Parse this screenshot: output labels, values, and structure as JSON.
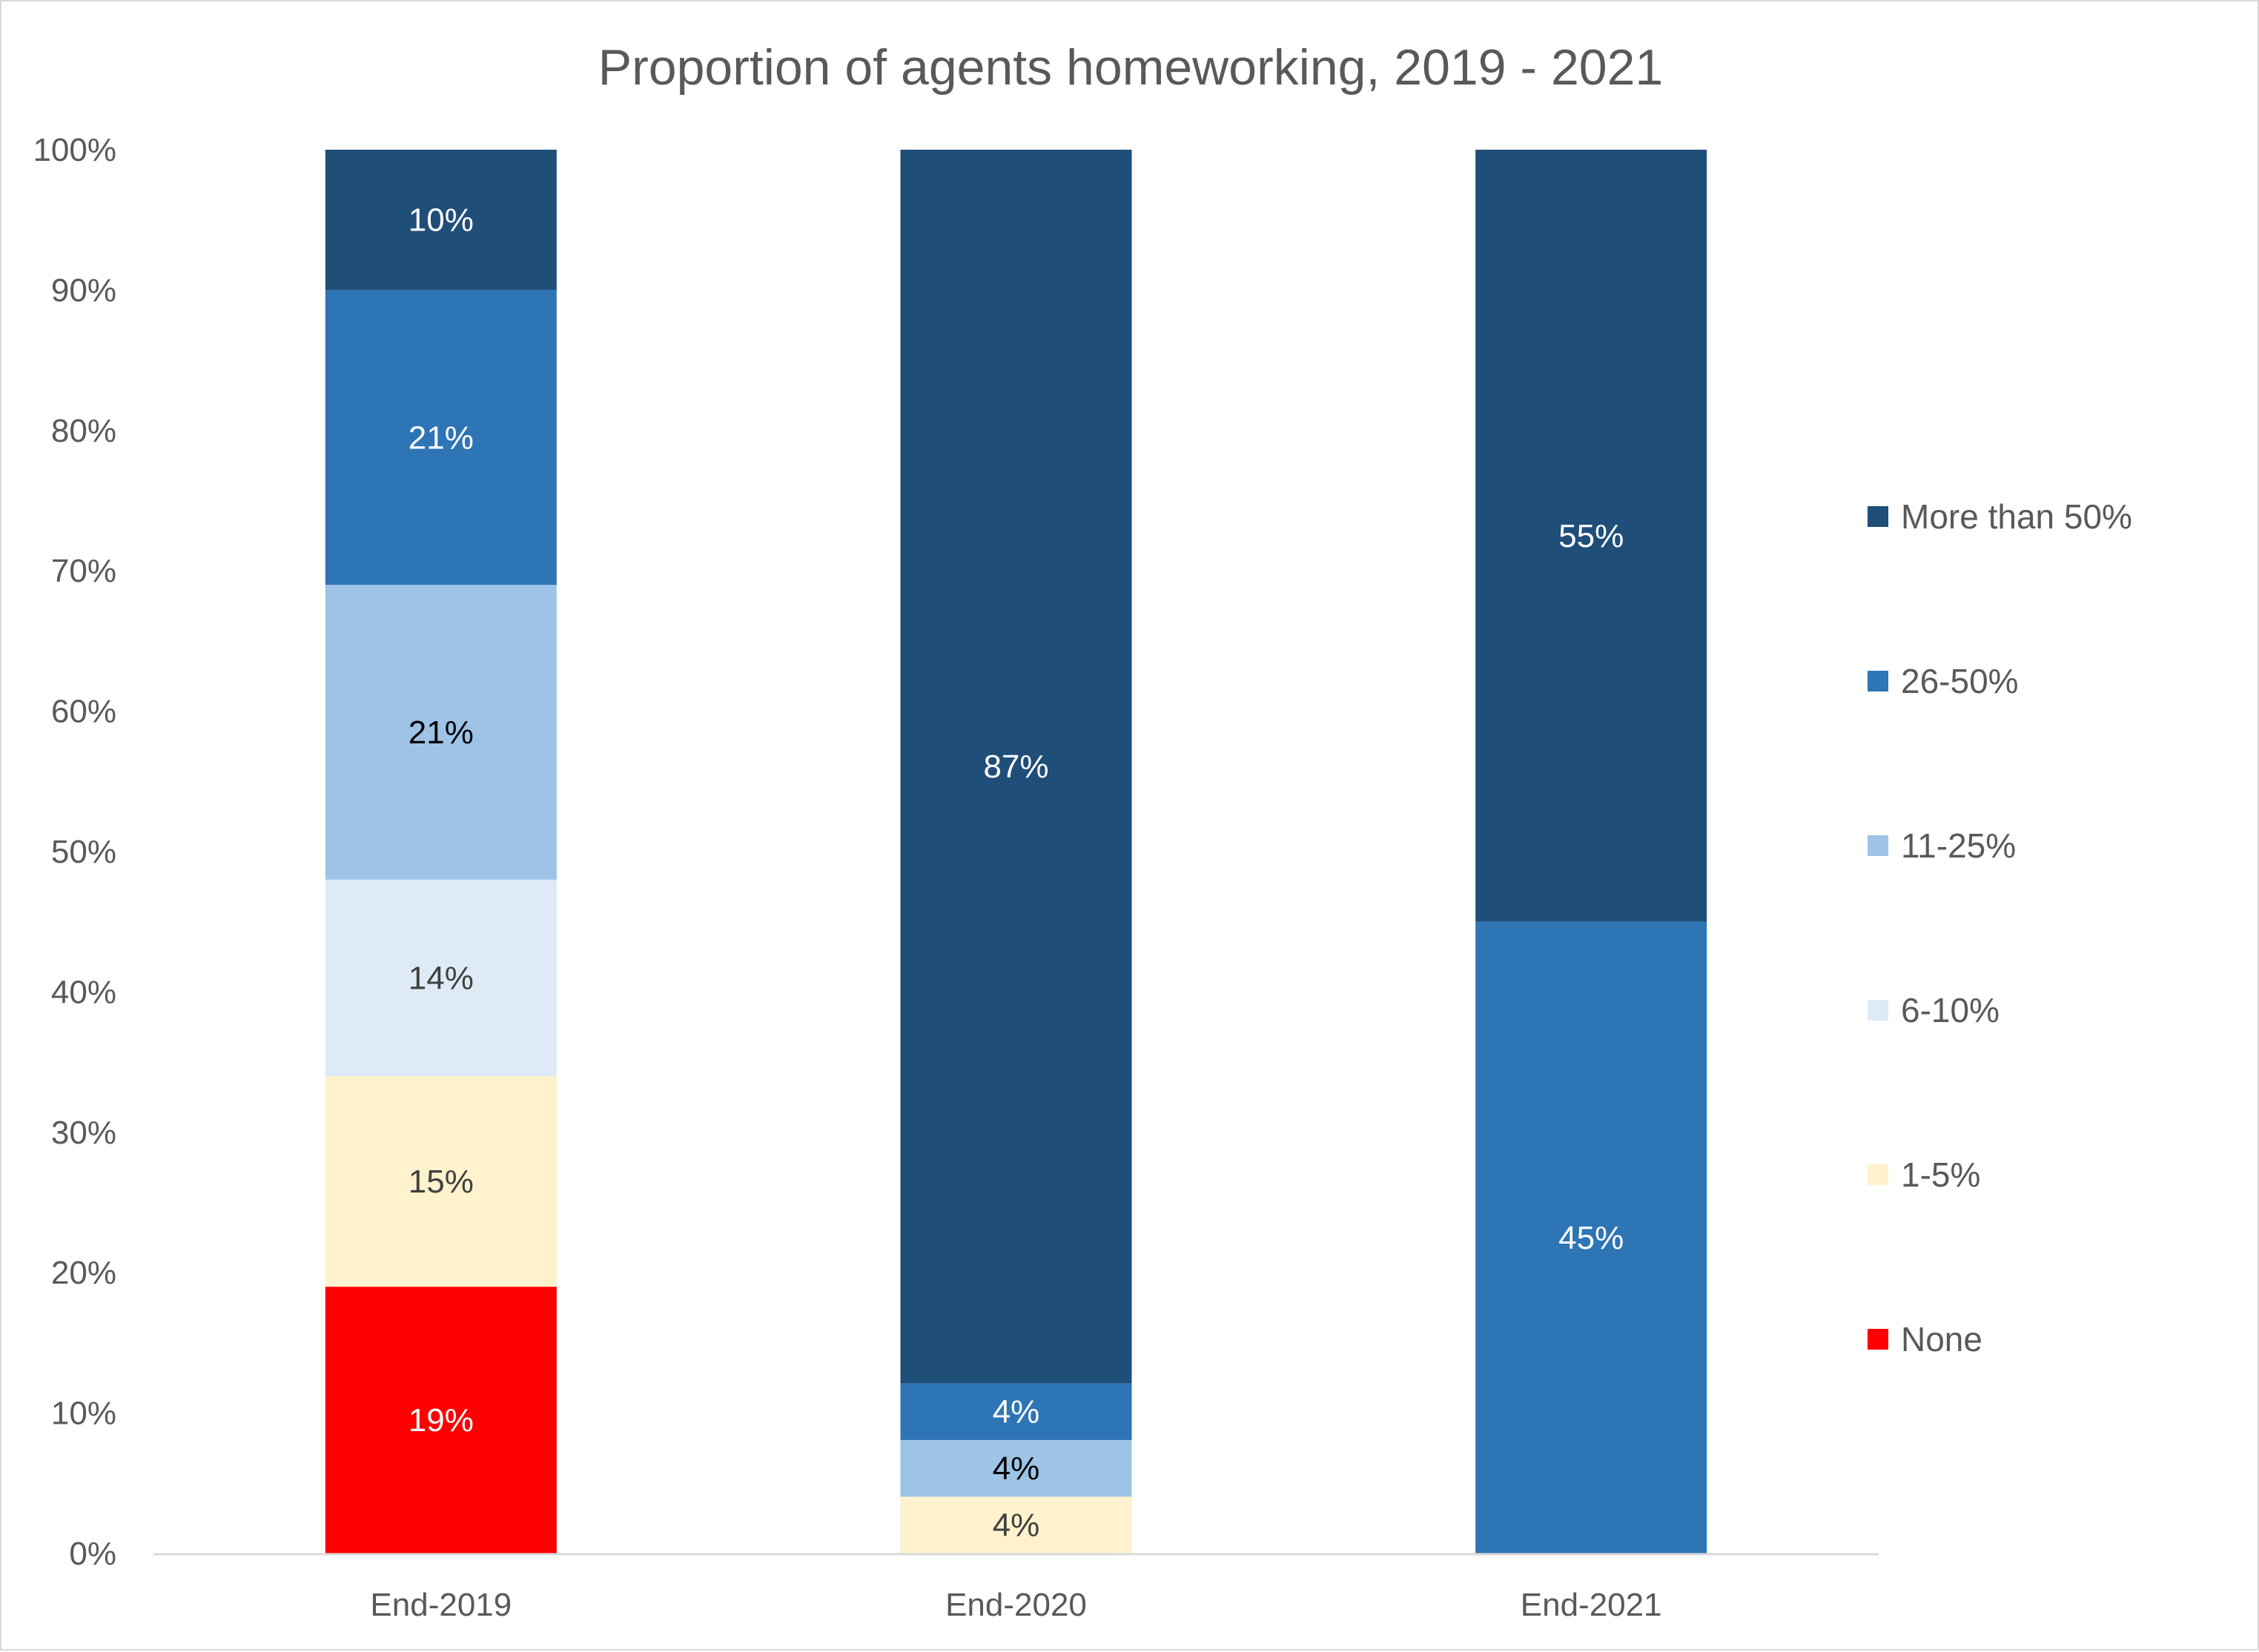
{
  "chart_data": {
    "type": "bar",
    "stacked": true,
    "title": "Proportion of agents homeworking, 2019 - 2021",
    "xlabel": "",
    "ylabel": "",
    "ylim": [
      0,
      100
    ],
    "y_ticks": [
      "0%",
      "10%",
      "20%",
      "30%",
      "40%",
      "50%",
      "60%",
      "70%",
      "80%",
      "90%",
      "100%"
    ],
    "categories": [
      "End-2019",
      "End-2020",
      "End-2021"
    ],
    "legend_position": "right",
    "grid": false,
    "series": [
      {
        "name": "None",
        "color": "#ff0000",
        "label_color": "#ffffff",
        "values": [
          19,
          0,
          0
        ]
      },
      {
        "name": "1-5%",
        "color": "#fff2cc",
        "label_color": "#404040",
        "values": [
          15,
          4,
          0
        ]
      },
      {
        "name": "6-10%",
        "color": "#deebf7",
        "label_color": "#404040",
        "values": [
          14,
          0,
          0
        ]
      },
      {
        "name": "11-25%",
        "color": "#9dc3e6",
        "label_color": "#000000",
        "values": [
          21,
          4,
          0
        ]
      },
      {
        "name": "26-50%",
        "color": "#2e75b6",
        "label_color": "#ffffff",
        "values": [
          21,
          4,
          45
        ]
      },
      {
        "name": "More than 50%",
        "color": "#1f4e79",
        "label_color": "#ffffff",
        "values": [
          10,
          87,
          55
        ]
      }
    ],
    "data_labels": [
      [
        "19%",
        "15%",
        "14%",
        "21%",
        "21%",
        "10%"
      ],
      [
        "",
        "4%",
        "",
        "4%",
        "4%",
        "87%"
      ],
      [
        "",
        "",
        "",
        "",
        "45%",
        "55%"
      ]
    ]
  }
}
